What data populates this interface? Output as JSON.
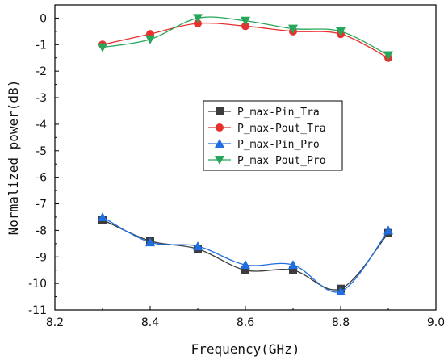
{
  "chart_data": {
    "type": "line",
    "title": "",
    "xlabel": "Frequency(GHz)",
    "ylabel": "Normalized power(dB)",
    "xlim": [
      8.2,
      9.0
    ],
    "ylim": [
      -11,
      0.5
    ],
    "xticks": [
      "8.2",
      "8.4",
      "8.6",
      "8.8",
      "9.0"
    ],
    "yticks": [
      "0",
      "-1",
      "-2",
      "-3",
      "-4",
      "-5",
      "-6",
      "-7",
      "-8",
      "-9",
      "-10",
      "-11"
    ],
    "grid": false,
    "legend_position": "center-right",
    "x": [
      8.3,
      8.4,
      8.5,
      8.6,
      8.7,
      8.8,
      8.9
    ],
    "series": [
      {
        "name": "P_max-Pin_Tra",
        "marker": "square",
        "color": "#3c3c3c",
        "values": [
          -7.6,
          -8.4,
          -8.7,
          -9.5,
          -9.5,
          -10.2,
          -8.1
        ]
      },
      {
        "name": "P_max-Pout_Tra",
        "marker": "circle",
        "color": "#e8302f",
        "values": [
          -1.0,
          -0.6,
          -0.2,
          -0.3,
          -0.5,
          -0.6,
          -1.5
        ]
      },
      {
        "name": "P_max-Pin_Pro",
        "marker": "triangle-up",
        "color": "#1f6fe0",
        "values": [
          -7.5,
          -8.45,
          -8.6,
          -9.3,
          -9.3,
          -10.3,
          -8.0
        ]
      },
      {
        "name": "P_max-Pout_Pro",
        "marker": "triangle-down",
        "color": "#26a65b",
        "values": [
          -1.1,
          -0.8,
          0.0,
          -0.1,
          -0.4,
          -0.5,
          -1.4
        ]
      }
    ]
  }
}
